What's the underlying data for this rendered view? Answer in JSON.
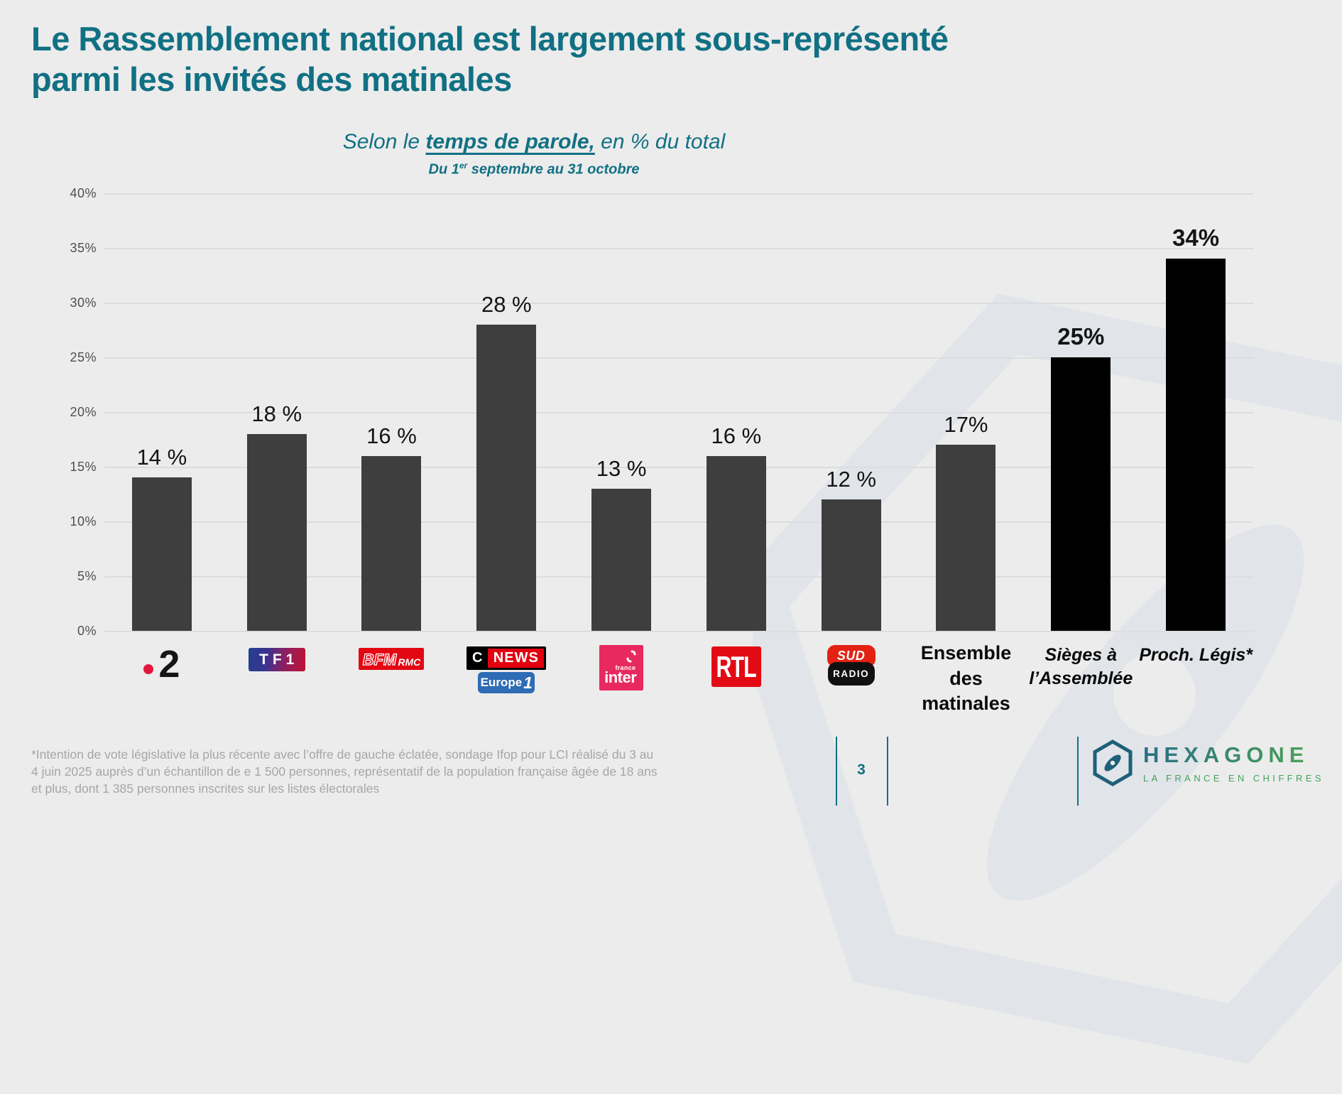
{
  "title": {
    "line1": "Le Rassemblement national est largement sous-représenté",
    "line2": "parmi les invités des matinales"
  },
  "subtitle": {
    "prefix": "Selon le ",
    "emphasis": "temps de parole,",
    "suffix": " en % du total"
  },
  "period": {
    "prefix": "Du 1",
    "superscript": "er",
    "suffix": " septembre au 31 octobre"
  },
  "chart_data": {
    "type": "bar",
    "title": "Selon le temps de parole, en % du total",
    "subtitle": "Du 1er septembre au 31 octobre",
    "unit": "%",
    "categories": [
      "France 2",
      "TF1",
      "BFM RMC",
      "CNEWS / Europe 1",
      "France Inter",
      "RTL",
      "Sud Radio",
      "Ensemble des matinales",
      "Sièges à l'Assemblée",
      "Proch. Légis*"
    ],
    "values": [
      14,
      18,
      16,
      28,
      13,
      16,
      12,
      17,
      25,
      34
    ],
    "display_labels": [
      "14 %",
      "18 %",
      "16 %",
      "28 %",
      "13 %",
      "16 %",
      "12 %",
      "17%",
      "25%",
      "34%"
    ],
    "bar_colors": [
      "#3e3e3e",
      "#3e3e3e",
      "#3e3e3e",
      "#3e3e3e",
      "#3e3e3e",
      "#3e3e3e",
      "#3e3e3e",
      "#3e3e3e",
      "#000000",
      "#000000"
    ],
    "label_bold": [
      false,
      false,
      false,
      false,
      false,
      false,
      false,
      false,
      true,
      true
    ],
    "ylim": [
      0,
      40
    ],
    "y_ticks": [
      "40%",
      "35%",
      "30%",
      "25%",
      "20%",
      "15%",
      "10%",
      "5%",
      "0%"
    ],
    "grid": true,
    "legend": "none"
  },
  "logos": {
    "france2_digit": "2",
    "tf1": "TF1",
    "bfm": "BFM",
    "rmc": "RMC",
    "cnews_c": "C",
    "cnews_news": "NEWS",
    "europe1_word": "Europe",
    "europe1_digit": "1",
    "inter_small": "france",
    "inter_word": "inter",
    "rtl": "RTL",
    "sud": "SUD",
    "radio": "RADIO"
  },
  "x_labels": {
    "ensemble": "Ensemble des matinales",
    "sieges": "Sièges à l’Assemblée",
    "proch": "Proch. Légis*"
  },
  "footer": {
    "footnote": "*Intention de vote législative la plus récente avec l’offre de gauche éclatée, sondage Ifop pour LCI réalisé du 3 au 4 juin 2025 auprès d’un échantillon de e 1 500 personnes, représentatif de la population française âgée de 18 ans et plus, dont 1 385 personnes inscrites sur les listes électorales",
    "page_number": "3",
    "brand_name": "HEXAGONE",
    "brand_tagline": "LA FRANCE EN CHIFFRES"
  },
  "colors": {
    "accent_teal": "#117083",
    "bar_gray": "#3e3e3e",
    "bar_black": "#000000",
    "background": "#ececec",
    "gridline": "#dcdcdc",
    "brand_green": "#51a556",
    "footnote_gray": "#a6a6a6"
  }
}
